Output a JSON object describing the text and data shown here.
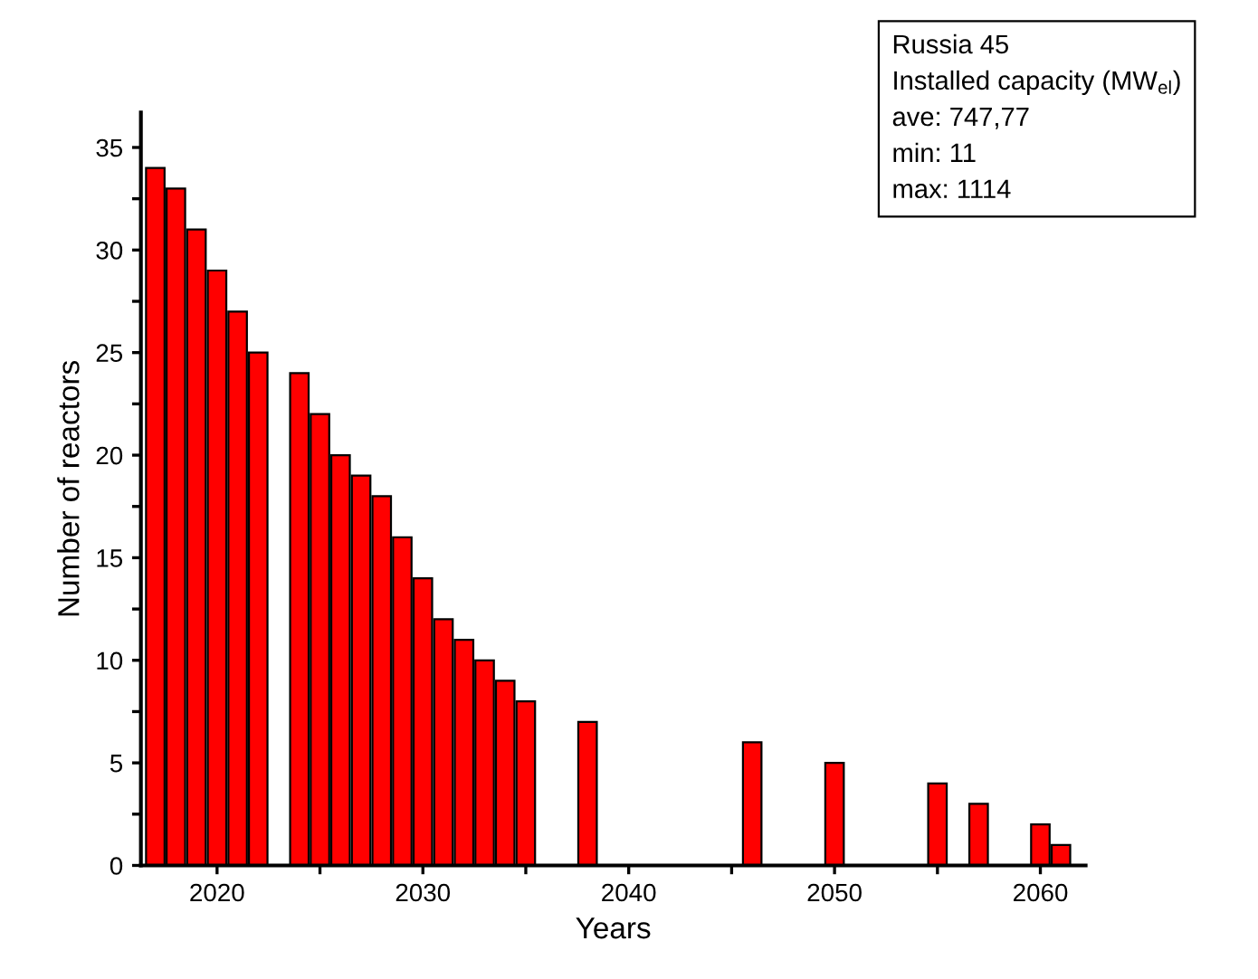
{
  "chart_data": {
    "type": "bar",
    "xlabel": "Years",
    "ylabel": "Number of reactors",
    "x": [
      2017,
      2018,
      2019,
      2020,
      2021,
      2022,
      2024,
      2025,
      2026,
      2027,
      2028,
      2029,
      2030,
      2031,
      2032,
      2033,
      2034,
      2035,
      2038,
      2046,
      2050,
      2055,
      2057,
      2060,
      2061
    ],
    "values": [
      34,
      33,
      31,
      29,
      27,
      25,
      24,
      22,
      20,
      19,
      18,
      16,
      14,
      12,
      11,
      10,
      9,
      8,
      7,
      6,
      5,
      4,
      3,
      2,
      1
    ],
    "color": "#ff0000",
    "xlim": [
      2016.3,
      2062.2
    ],
    "xticks": [
      2020,
      {
        "value": 2025,
        "label": null
      },
      2030,
      {
        "value": 2035,
        "label": null
      },
      2040,
      {
        "value": 2045,
        "label": null
      },
      2050,
      {
        "value": 2055,
        "label": null
      },
      2060
    ],
    "ylim": [
      0,
      36.7
    ],
    "yticks": [
      0,
      {
        "value": 2.5,
        "label": null
      },
      5,
      {
        "value": 7.5,
        "label": null
      },
      10,
      {
        "value": 12.5,
        "label": null
      },
      15,
      {
        "value": 17.5,
        "label": null
      },
      20,
      {
        "value": 22.5,
        "label": null
      },
      25,
      {
        "value": 27.5,
        "label": null
      },
      30,
      {
        "value": 32.5,
        "label": null
      },
      35
    ],
    "grid": false,
    "annotations": [
      "Russia 45\nInstalled capacity (MW$_{el}$)",
      "ave: 747,77\nmin: 11\nmax: 1114"
    ]
  }
}
